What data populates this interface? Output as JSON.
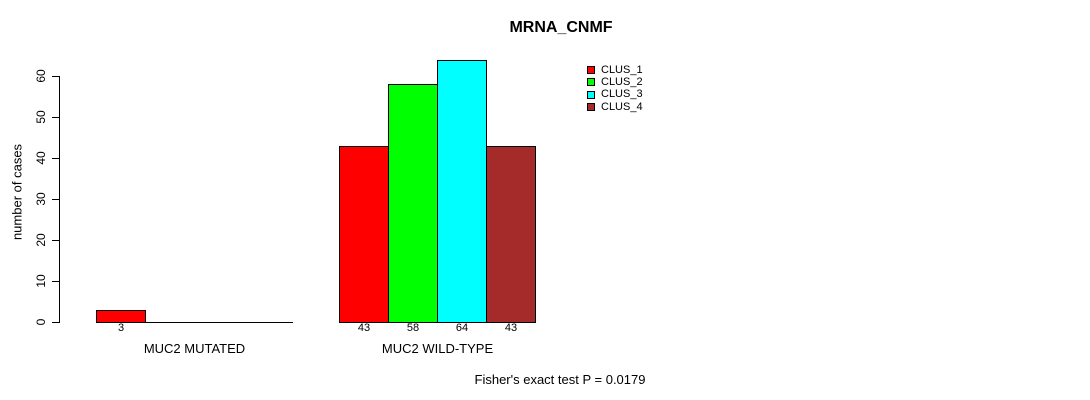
{
  "chart_data": {
    "type": "bar",
    "title": "MRNA_CNMF",
    "ylabel": "number of cases",
    "xlabel": "",
    "categories": [
      "MUC2 MUTATED",
      "MUC2 WILD-TYPE"
    ],
    "series": [
      {
        "name": "CLUS_1",
        "color": "#ff0000",
        "values": [
          3,
          43
        ]
      },
      {
        "name": "CLUS_2",
        "color": "#00ff00",
        "values": [
          0,
          58
        ]
      },
      {
        "name": "CLUS_3",
        "color": "#00ffff",
        "values": [
          0,
          64
        ]
      },
      {
        "name": "CLUS_4",
        "color": "#a52a2a",
        "values": [
          0,
          43
        ]
      }
    ],
    "yticks": [
      0,
      10,
      20,
      30,
      40,
      50,
      60
    ],
    "ylim": [
      0,
      60
    ],
    "grid": false,
    "legend_position": "top-right",
    "bar_value_labels_shown": true,
    "annotation": "Fisher's exact test P = 0.0179"
  }
}
